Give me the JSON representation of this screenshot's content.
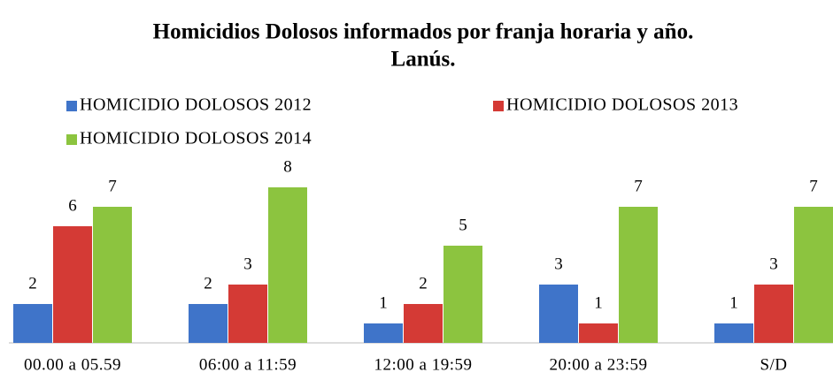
{
  "chart_data": {
    "type": "bar",
    "title": [
      "Homicidios Dolosos informados por franja horaria y año.",
      "Lanús."
    ],
    "categories": [
      "00.00 a 05.59",
      "06:00 a 11:59",
      "12:00 a 19:59",
      "20:00 a 23:59",
      "S/D"
    ],
    "series": [
      {
        "name": "HOMICIDIO DOLOSOS 2012",
        "color": "#3f74c9",
        "values": [
          2,
          2,
          1,
          3,
          1
        ]
      },
      {
        "name": "HOMICIDIO DOLOSOS 2013",
        "color": "#d43a35",
        "values": [
          6,
          3,
          2,
          1,
          3
        ]
      },
      {
        "name": "HOMICIDIO DOLOSOS 2014",
        "color": "#8cc43f",
        "values": [
          7,
          8,
          5,
          7,
          7
        ]
      }
    ]
  }
}
